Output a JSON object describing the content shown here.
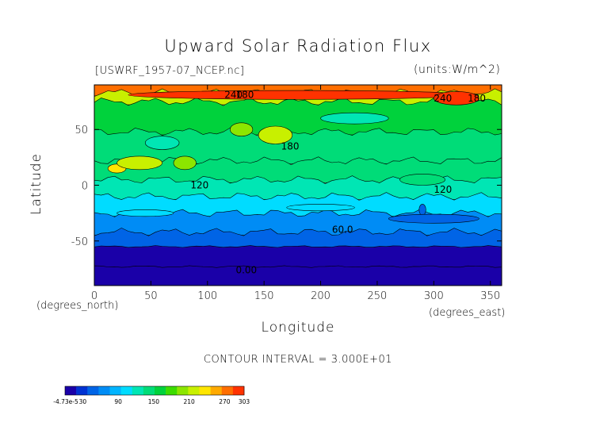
{
  "chart_data": {
    "type": "heatmap",
    "title": "Upward Solar Radiation Flux",
    "subtitle_left": "[USWRF_1957-07_NCEP.nc]",
    "subtitle_right": "(units:W/m^2)",
    "xlabel": "Longitude",
    "ylabel": "Latitude",
    "x_unit": "(degrees_east)",
    "y_unit": "(degrees_north)",
    "xlim": [
      0,
      360
    ],
    "ylim": [
      -90,
      90
    ],
    "x_ticks": [
      0,
      50,
      100,
      150,
      200,
      250,
      300,
      350
    ],
    "y_ticks": [
      -50,
      0,
      50
    ],
    "contour_interval_text": "CONTOUR INTERVAL = 3.000E+01",
    "contour_labels": [
      {
        "text": "240",
        "x": 115,
        "y": 81
      },
      {
        "text": "180",
        "x": 125,
        "y": 81
      },
      {
        "text": "240",
        "x": 300,
        "y": 78
      },
      {
        "text": "180",
        "x": 330,
        "y": 78
      },
      {
        "text": "180",
        "x": 165,
        "y": 35
      },
      {
        "text": "120",
        "x": 85,
        "y": 0
      },
      {
        "text": "120",
        "x": 300,
        "y": -4
      },
      {
        "text": "60.0",
        "x": 210,
        "y": -40
      },
      {
        "text": "0.00",
        "x": 125,
        "y": -76
      }
    ],
    "lat_bands": [
      {
        "lat_from": 90,
        "lat_to": 83,
        "value": 270
      },
      {
        "lat_from": 83,
        "lat_to": 75,
        "value": 210
      },
      {
        "lat_from": 75,
        "lat_to": 48,
        "value": 170
      },
      {
        "lat_from": 48,
        "lat_to": 22,
        "value": 150
      },
      {
        "lat_from": 22,
        "lat_to": 5,
        "value": 140
      },
      {
        "lat_from": 5,
        "lat_to": -10,
        "value": 115
      },
      {
        "lat_from": -10,
        "lat_to": -25,
        "value": 95
      },
      {
        "lat_from": -25,
        "lat_to": -42,
        "value": 70
      },
      {
        "lat_from": -42,
        "lat_to": -55,
        "value": 40
      },
      {
        "lat_from": -55,
        "lat_to": -73,
        "value": 15
      },
      {
        "lat_from": -73,
        "lat_to": -90,
        "value": 0
      }
    ],
    "patches": [
      {
        "lon": 180,
        "lat": 81,
        "rx": 150,
        "ry": 4,
        "value": 290
      },
      {
        "lon": 320,
        "lat": 78,
        "rx": 20,
        "ry": 6,
        "value": 290
      },
      {
        "lon": 160,
        "lat": 45,
        "rx": 15,
        "ry": 8,
        "value": 210
      },
      {
        "lon": 80,
        "lat": 20,
        "rx": 10,
        "ry": 6,
        "value": 190
      },
      {
        "lon": 130,
        "lat": 50,
        "rx": 10,
        "ry": 6,
        "value": 190
      },
      {
        "lon": 230,
        "lat": 60,
        "rx": 30,
        "ry": 5,
        "value": 130
      },
      {
        "lon": 60,
        "lat": 38,
        "rx": 15,
        "ry": 6,
        "value": 130
      },
      {
        "lon": 20,
        "lat": 15,
        "rx": 8,
        "ry": 4,
        "value": 240
      },
      {
        "lon": 40,
        "lat": 20,
        "rx": 20,
        "ry": 6,
        "value": 210
      },
      {
        "lon": 290,
        "lat": 5,
        "rx": 20,
        "ry": 5,
        "value": 150
      },
      {
        "lon": 290,
        "lat": -22,
        "rx": 3,
        "ry": 5,
        "value": 45
      },
      {
        "lon": 45,
        "lat": -25,
        "rx": 25,
        "ry": 3,
        "value": 100
      },
      {
        "lon": 200,
        "lat": -20,
        "rx": 30,
        "ry": 3,
        "value": 100
      },
      {
        "lon": 300,
        "lat": -30,
        "rx": 40,
        "ry": 4,
        "value": 45
      }
    ],
    "colorbar": {
      "min": -4.73e-05,
      "max": 303,
      "tick_labels": [
        "-4.73e-5",
        "30",
        "90",
        "150",
        "210",
        "270",
        "303"
      ],
      "tick_values": [
        0,
        30,
        90,
        150,
        210,
        270,
        303
      ],
      "colors": [
        "#1a00a8",
        "#0032d2",
        "#0064e6",
        "#008cf5",
        "#00b4ff",
        "#00dcff",
        "#00e6b4",
        "#00dc78",
        "#00d23c",
        "#3cdc00",
        "#8ce600",
        "#c8f000",
        "#ffe600",
        "#ffaa00",
        "#ff6e00",
        "#ff3200"
      ]
    }
  }
}
